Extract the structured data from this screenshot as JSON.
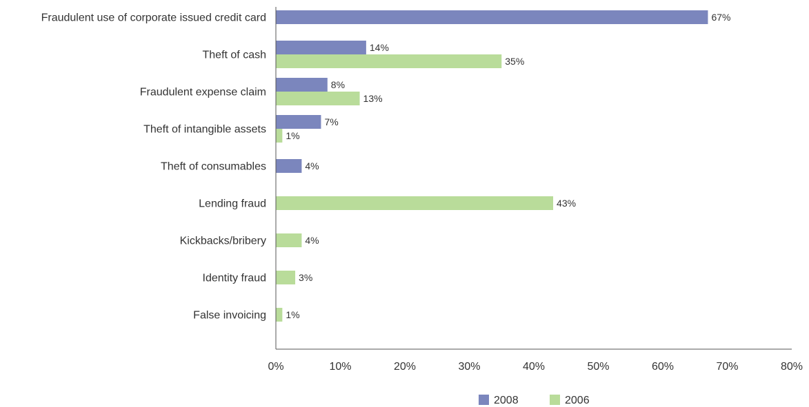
{
  "chart_data": {
    "type": "bar",
    "orientation": "horizontal",
    "categories": [
      "Fraudulent use of corporate issued credit card",
      "Theft of cash",
      "Fraudulent expense claim",
      "Theft of intangible assets",
      "Theft of consumables",
      "Lending fraud",
      "Kickbacks/bribery",
      "Identity fraud",
      "False invoicing"
    ],
    "series": [
      {
        "name": "2008",
        "color": "#7b86bd",
        "values": [
          67,
          14,
          8,
          7,
          4,
          null,
          null,
          null,
          null
        ]
      },
      {
        "name": "2006",
        "color": "#b9dc9a",
        "values": [
          null,
          35,
          13,
          1,
          null,
          43,
          4,
          3,
          1
        ]
      }
    ],
    "xlim": [
      0,
      80
    ],
    "x_ticks": [
      0,
      10,
      20,
      30,
      40,
      50,
      60,
      70,
      80
    ],
    "tick_suffix": "%",
    "value_suffix": "%",
    "legend_position": "bottom-center",
    "grid": false,
    "title": "",
    "xlabel": "",
    "ylabel": ""
  }
}
